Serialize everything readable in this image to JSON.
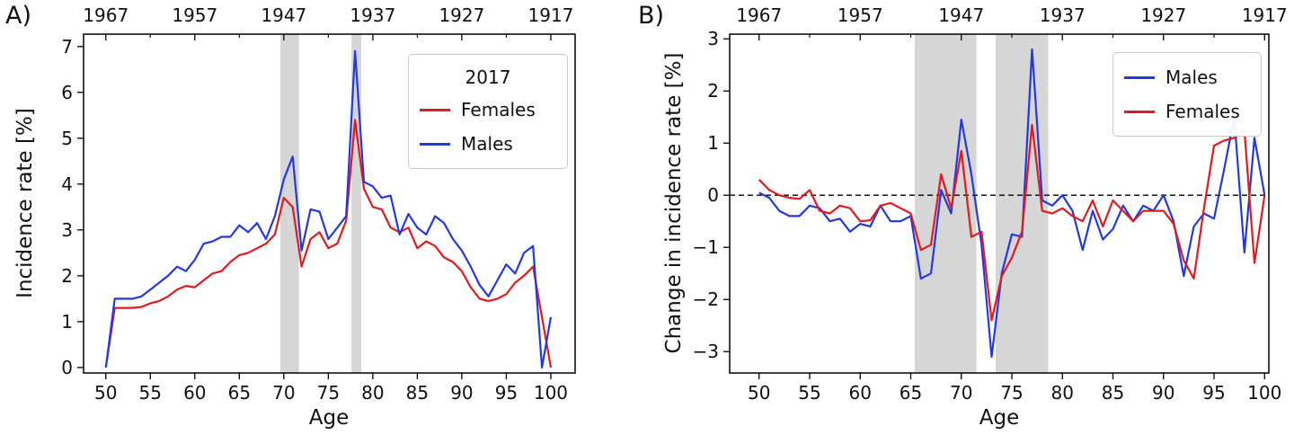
{
  "page": {
    "background": "#ffffff",
    "panel_letters": [
      "A)",
      "B)"
    ]
  },
  "chart_data": [
    {
      "type": "line",
      "panel_letter": "A)",
      "xlabel": "Age",
      "ylabel": "Incidence rate [%]",
      "xlim": [
        47.5,
        102.73
      ],
      "ylim": [
        -0.12,
        7.27
      ],
      "xticks": [
        50,
        55,
        60,
        65,
        70,
        75,
        80,
        85,
        90,
        95,
        100
      ],
      "yticks": [
        0,
        1,
        2,
        3,
        4,
        5,
        6,
        7
      ],
      "top_axis": {
        "labels": [
          "1967",
          "1957",
          "1947",
          "1937",
          "1927",
          "1917"
        ],
        "ages": [
          50,
          60,
          70,
          80,
          90,
          100
        ],
        "minor_ages": [
          55,
          65,
          75,
          85,
          95
        ]
      },
      "shaded_bands": [
        {
          "from": 69.6,
          "to": 71.7
        },
        {
          "from": 77.6,
          "to": 78.7
        }
      ],
      "band_color": "#d6d6d6",
      "zero_line": false,
      "grid": false,
      "legend": {
        "title": "2017",
        "position": "top-right",
        "entries": [
          {
            "label": "Females",
            "color": "#e01b1f"
          },
          {
            "label": "Males",
            "color": "#2438e0"
          }
        ]
      },
      "x": [
        50,
        51,
        52,
        53,
        54,
        55,
        56,
        57,
        58,
        59,
        60,
        61,
        62,
        63,
        64,
        65,
        66,
        67,
        68,
        69,
        70,
        71,
        72,
        73,
        74,
        75,
        76,
        77,
        78,
        79,
        80,
        81,
        82,
        83,
        84,
        85,
        86,
        87,
        88,
        89,
        90,
        91,
        92,
        93,
        94,
        95,
        96,
        97,
        98,
        99,
        100
      ],
      "series": [
        {
          "name": "Females",
          "color": "#e01b1f",
          "values": [
            0,
            1.3,
            1.3,
            1.3,
            1.32,
            1.4,
            1.45,
            1.55,
            1.7,
            1.78,
            1.75,
            1.9,
            2.05,
            2.1,
            2.3,
            2.45,
            2.5,
            2.6,
            2.7,
            2.9,
            3.7,
            3.5,
            2.2,
            2.8,
            2.95,
            2.6,
            2.7,
            3.2,
            5.4,
            3.9,
            3.5,
            3.45,
            3.05,
            2.95,
            3.05,
            2.6,
            2.75,
            2.65,
            2.4,
            2.3,
            2.1,
            1.75,
            1.5,
            1.45,
            1.5,
            1.6,
            1.85,
            2.0,
            2.2,
            1.1,
            0.0
          ]
        },
        {
          "name": "Males",
          "color": "#2438e0",
          "values": [
            0,
            1.5,
            1.5,
            1.5,
            1.55,
            1.7,
            1.85,
            2.0,
            2.2,
            2.1,
            2.35,
            2.7,
            2.75,
            2.85,
            2.85,
            3.1,
            2.95,
            3.15,
            2.8,
            3.3,
            4.1,
            4.6,
            2.55,
            3.45,
            3.4,
            2.8,
            3.05,
            3.3,
            6.9,
            4.05,
            3.95,
            3.7,
            3.75,
            2.9,
            3.35,
            3.05,
            2.9,
            3.3,
            3.15,
            2.8,
            2.55,
            2.2,
            1.8,
            1.55,
            1.9,
            2.25,
            2.05,
            2.5,
            2.65,
            0.0,
            1.1
          ]
        }
      ]
    },
    {
      "type": "line",
      "panel_letter": "B)",
      "xlabel": "Age",
      "ylabel": "Change in incidence rate [%]",
      "xlim": [
        47.09,
        100.42
      ],
      "ylim": [
        -3.41,
        3.09
      ],
      "xticks": [
        50,
        55,
        60,
        65,
        70,
        75,
        80,
        85,
        90,
        95,
        100
      ],
      "yticks": [
        -3,
        -2,
        -1,
        0,
        1,
        2,
        3
      ],
      "top_axis": {
        "labels": [
          "1967",
          "1957",
          "1947",
          "1937",
          "1927",
          "1917"
        ],
        "ages": [
          50,
          60,
          70,
          80,
          90,
          100
        ],
        "minor_ages": [
          55,
          65,
          75,
          85,
          95
        ]
      },
      "shaded_bands": [
        {
          "from": 65.4,
          "to": 71.5
        },
        {
          "from": 73.4,
          "to": 78.6
        }
      ],
      "band_color": "#d6d6d6",
      "zero_line": true,
      "zero_line_color": "#000000",
      "grid": false,
      "legend": {
        "title": null,
        "position": "top-right",
        "entries": [
          {
            "label": "Males",
            "color": "#2438e0"
          },
          {
            "label": "Females",
            "color": "#e01b1f"
          }
        ]
      },
      "x": [
        50,
        51,
        52,
        53,
        54,
        55,
        56,
        57,
        58,
        59,
        60,
        61,
        62,
        63,
        64,
        65,
        66,
        67,
        68,
        69,
        70,
        71,
        72,
        73,
        74,
        75,
        76,
        77,
        78,
        79,
        80,
        81,
        82,
        83,
        84,
        85,
        86,
        87,
        88,
        89,
        90,
        91,
        92,
        93,
        94,
        95,
        96,
        97,
        98,
        99,
        100
      ],
      "series": [
        {
          "name": "Males",
          "color": "#2438e0",
          "values": [
            0.05,
            -0.05,
            -0.3,
            -0.4,
            -0.4,
            -0.2,
            -0.25,
            -0.5,
            -0.45,
            -0.7,
            -0.55,
            -0.6,
            -0.2,
            -0.5,
            -0.5,
            -0.4,
            -1.6,
            -1.5,
            0.1,
            -0.35,
            1.45,
            0.4,
            -0.95,
            -3.1,
            -1.5,
            -0.75,
            -0.8,
            2.8,
            -0.1,
            -0.2,
            0.0,
            -0.3,
            -1.05,
            -0.3,
            -0.85,
            -0.65,
            -0.2,
            -0.5,
            -0.2,
            -0.3,
            0.0,
            -0.5,
            -1.55,
            -0.6,
            -0.35,
            -0.45,
            0.5,
            1.5,
            -1.1,
            1.1,
            0.0
          ]
        },
        {
          "name": "Females",
          "color": "#e01b1f",
          "values": [
            0.3,
            0.1,
            0.0,
            -0.05,
            -0.07,
            0.1,
            -0.3,
            -0.35,
            -0.2,
            -0.25,
            -0.5,
            -0.48,
            -0.2,
            -0.15,
            -0.25,
            -0.35,
            -1.05,
            -0.95,
            0.4,
            -0.25,
            0.85,
            -0.8,
            -0.7,
            -2.4,
            -1.55,
            -1.2,
            -0.7,
            1.35,
            -0.3,
            -0.35,
            -0.25,
            -0.4,
            -0.5,
            -0.1,
            -0.6,
            -0.1,
            -0.3,
            -0.5,
            -0.3,
            -0.3,
            -0.3,
            -0.55,
            -1.25,
            -1.6,
            -0.25,
            0.95,
            1.05,
            1.1,
            1.25,
            -1.3,
            0.0
          ]
        }
      ]
    }
  ]
}
